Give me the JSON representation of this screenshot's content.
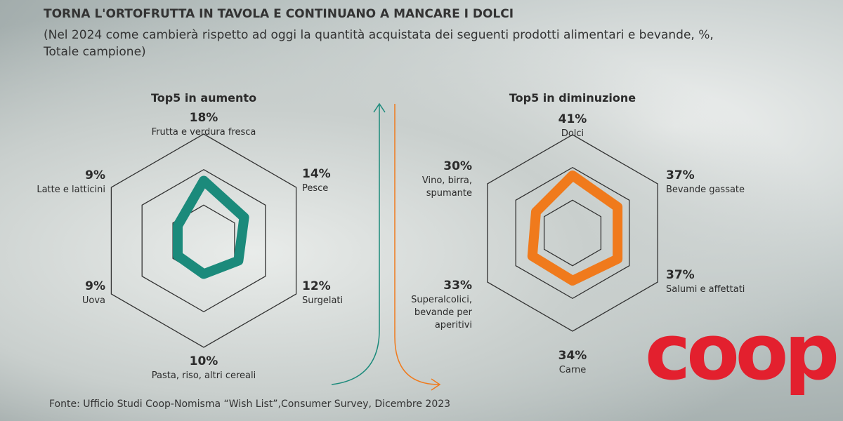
{
  "title": "TORNA L'ORTOFRUTTA IN TAVOLA E CONTINUANO A MANCARE I DOLCI",
  "subtitle": "(Nel 2024 come cambierà rispetto ad oggi la quantità acquistata dei seguenti prodotti alimentari e bevande, %, Totale campione)",
  "source": "Fonte: Ufficio Studi Coop-Nomisma “Wish List”,Consumer Survey, Dicembre 2023",
  "logo": "coop",
  "chart_data": [
    {
      "type": "radar",
      "title": "Top5 in aumento",
      "color": "#1b8a7b",
      "categories": [
        "Frutta e verdura fresca",
        "Pesce",
        "Surgelati",
        "Pasta, riso, altri cereali",
        "Uova",
        "Latte e latticini"
      ],
      "values": [
        18,
        14,
        12,
        10,
        9,
        9
      ],
      "value_labels": [
        "18%",
        "14%",
        "12%",
        "10%",
        "9%",
        "9%"
      ],
      "rlim": [
        0,
        32
      ]
    },
    {
      "type": "radar",
      "title": "Top5 in diminuzione",
      "color": "#f07a1c",
      "categories": [
        "Dolci",
        "Bevande gassate",
        "Salumi e affettati",
        "Carne",
        "Superalcolici, bevande per aperitivi",
        "Vino, birra, spumante"
      ],
      "values": [
        41,
        37,
        37,
        34,
        33,
        30
      ],
      "value_labels": [
        "41%",
        "37%",
        "37%",
        "34%",
        "33%",
        "30%"
      ],
      "rlim": [
        0,
        70
      ]
    }
  ]
}
